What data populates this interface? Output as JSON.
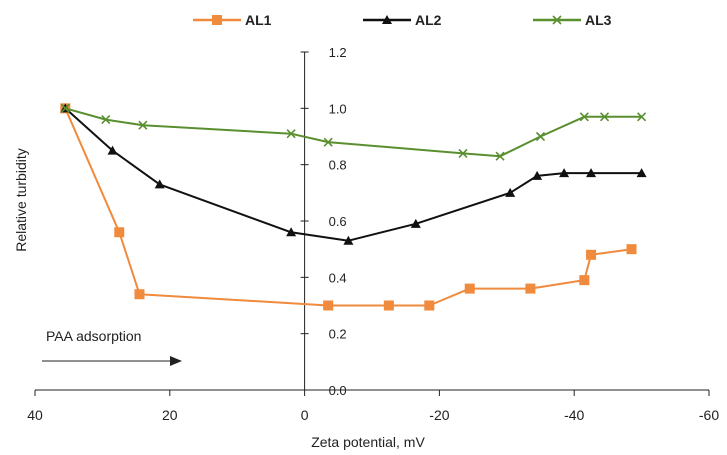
{
  "chart_data": {
    "type": "line",
    "title": "",
    "xlabel": "Zeta potential, mV",
    "ylabel": "Relative turbidity",
    "xlim": [
      40,
      -60
    ],
    "ylim": [
      0,
      1.2
    ],
    "x_axis_reversed": true,
    "x_ticks": [
      "40",
      "20",
      "0",
      "-20",
      "-40",
      "-60"
    ],
    "x_tick_values": [
      40,
      20,
      0,
      -20,
      -40,
      -60
    ],
    "y_ticks": [
      "0.0",
      "0.2",
      "0.4",
      "0.6",
      "0.8",
      "1.0",
      "1.2"
    ],
    "y_tick_values": [
      0,
      0.2,
      0.4,
      0.6,
      0.8,
      1.0,
      1.2
    ],
    "y_axis_crosses_at_x": 0,
    "grid": false,
    "legend_position": "top",
    "annotation": "PAA adsorption",
    "series": [
      {
        "name": "AL1",
        "color": "#F08A3C",
        "marker": "square",
        "x": [
          35.5,
          27.5,
          24.5,
          -3.5,
          -12.5,
          -18.5,
          -24.5,
          -33.5,
          -41.5,
          -42.5,
          -48.5
        ],
        "y": [
          1.0,
          0.56,
          0.34,
          0.3,
          0.3,
          0.3,
          0.36,
          0.36,
          0.39,
          0.48,
          0.5
        ]
      },
      {
        "name": "AL2",
        "color": "#111111",
        "marker": "triangle",
        "x": [
          35.5,
          28.5,
          21.5,
          2.0,
          -6.5,
          -16.5,
          -30.5,
          -34.5,
          -38.5,
          -42.5,
          -50.0
        ],
        "y": [
          1.0,
          0.85,
          0.73,
          0.56,
          0.53,
          0.59,
          0.7,
          0.76,
          0.77,
          0.77,
          0.77
        ]
      },
      {
        "name": "AL3",
        "color": "#5A8F30",
        "marker": "x",
        "x": [
          35.5,
          29.5,
          24.0,
          2.0,
          -3.5,
          -23.5,
          -29.0,
          -35.0,
          -41.5,
          -44.5,
          -50.0
        ],
        "y": [
          1.0,
          0.96,
          0.94,
          0.91,
          0.88,
          0.84,
          0.83,
          0.9,
          0.97,
          0.97,
          0.97
        ]
      }
    ]
  }
}
